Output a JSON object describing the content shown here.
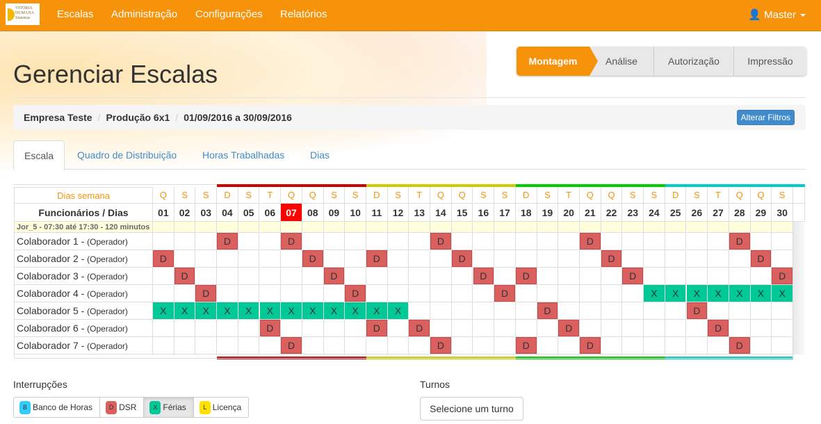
{
  "nav": {
    "logo_text": "VITÓRIA HUMANA Sistemas",
    "items": [
      "Escalas",
      "Administração",
      "Configurações",
      "Relatórios"
    ],
    "user": "Master"
  },
  "page": {
    "title": "Gerenciar Escalas"
  },
  "wizard": {
    "steps": [
      "Montagem",
      "Análise",
      "Autorização",
      "Impressão"
    ],
    "active": 0
  },
  "breadcrumb": {
    "company": "Empresa Teste",
    "sector": "Produção 6x1",
    "period": "01/09/2016 a 30/09/2016",
    "button": "Alterar Filtros"
  },
  "tabs": [
    "Escala",
    "Quadro de Distribuição",
    "Horas Trabalhadas",
    "Dias"
  ],
  "schedule": {
    "weekdays_label": "Dias semana",
    "days_label": "Funcionários / Dias",
    "weekdays": [
      "Q",
      "S",
      "S",
      "D",
      "S",
      "T",
      "Q",
      "Q",
      "S",
      "S",
      "D",
      "S",
      "T",
      "Q",
      "Q",
      "S",
      "S",
      "D",
      "S",
      "T",
      "Q",
      "Q",
      "S",
      "S",
      "D",
      "S",
      "T",
      "Q",
      "Q",
      "S"
    ],
    "days": [
      "01",
      "02",
      "03",
      "04",
      "05",
      "06",
      "07",
      "08",
      "09",
      "10",
      "11",
      "12",
      "13",
      "14",
      "15",
      "16",
      "17",
      "18",
      "19",
      "20",
      "21",
      "22",
      "23",
      "24",
      "25",
      "26",
      "27",
      "28",
      "29",
      "30"
    ],
    "today": "07",
    "weeks": [
      {
        "from": "04",
        "to": "10",
        "color": "#cc0000"
      },
      {
        "from": "11",
        "to": "17",
        "color": "#cccc00"
      },
      {
        "from": "18",
        "to": "24",
        "color": "#00cc00"
      },
      {
        "from": "25",
        "to": "30",
        "color": "#00cccc"
      }
    ],
    "shift": "Jor_5 - 07:30 até 17:30 - 120 minutos",
    "employees": [
      {
        "name": "Colaborador 1 - ",
        "role": "(Operador)",
        "cells": "...D..D......D......D......D.."
      },
      {
        "name": "Colaborador 2 - ",
        "role": "(Operador)",
        "cells": "D......D..D...D......D......D."
      },
      {
        "name": "Colaborador 3 - ",
        "role": "(Operador)",
        "cells": ".D......D......D.D....D......D"
      },
      {
        "name": "Colaborador 4 - ",
        "role": "(Operador)",
        "cells": "..D......D......D......XXXXXXX"
      },
      {
        "name": "Colaborador 5 - ",
        "role": "(Operador)",
        "cells": "XXXXXXXXXXXX......D......D...."
      },
      {
        "name": "Colaborador 6 - ",
        "role": "(Operador)",
        "cells": ".....D....D.D......D......D..."
      },
      {
        "name": "Colaborador 7 - ",
        "role": "(Operador)",
        "cells": "......D......D...D..D......D.."
      }
    ]
  },
  "legend": {
    "title": "Interrupções",
    "items": [
      {
        "code": "B",
        "label": "Banco de Horas",
        "color": "#33ccff"
      },
      {
        "code": "D",
        "label": "DSR",
        "color": "#d9605e"
      },
      {
        "code": "X",
        "label": "Férias",
        "color": "#00c896"
      },
      {
        "code": "L",
        "label": "Licença",
        "color": "#ffe000"
      }
    ],
    "active": "X"
  },
  "turnos": {
    "title": "Turnos",
    "button": "Selecione um turno"
  }
}
